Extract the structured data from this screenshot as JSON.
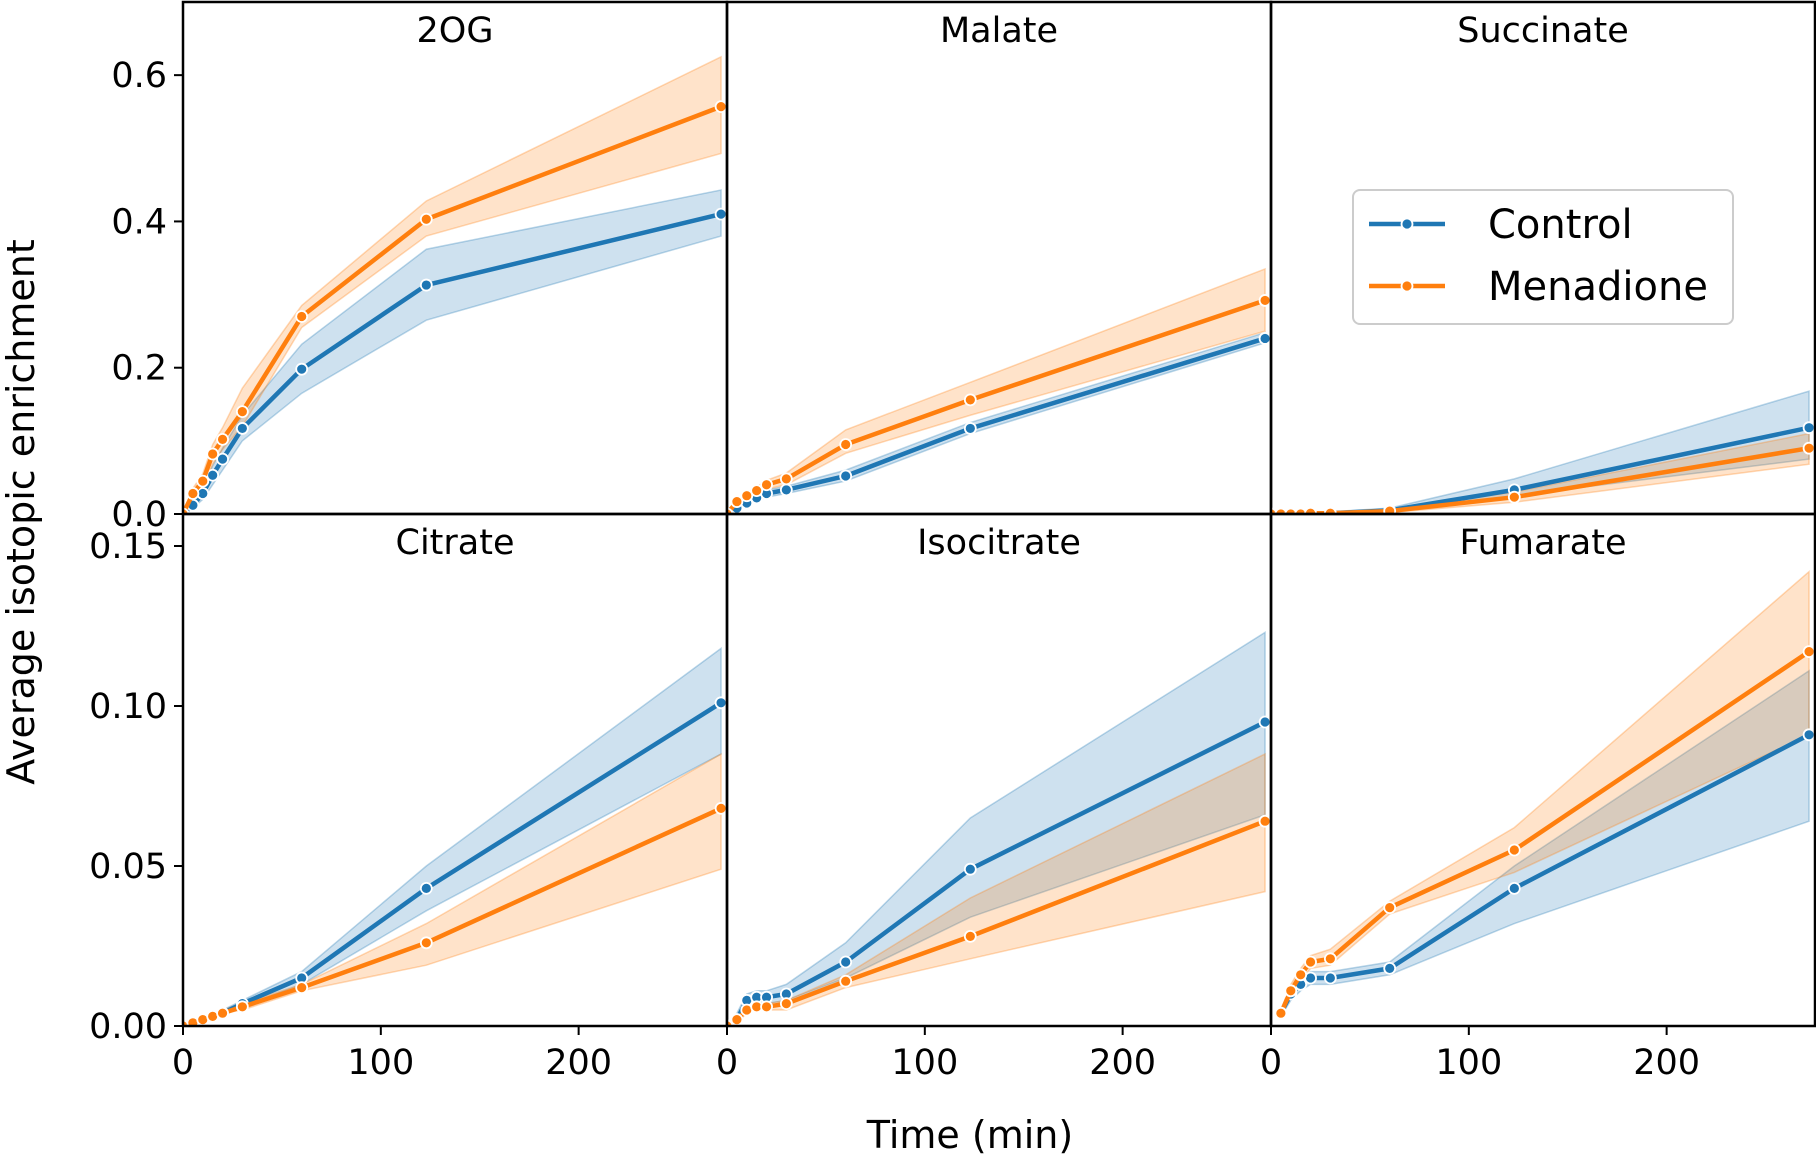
{
  "chart_data": {
    "type": "line",
    "xlabel": "Time (min)",
    "ylabel": "Average isotopic enrichment",
    "legend": {
      "placement": "top-right of Succinate panel",
      "entries": [
        {
          "name": "Control",
          "color": "#1f77b4"
        },
        {
          "name": "Menadione",
          "color": "#ff7f0e"
        }
      ]
    },
    "shared_x": {
      "ticks": [
        0,
        100,
        200
      ],
      "tick_labels": [
        "0",
        "100",
        "200"
      ],
      "range": [
        0,
        275
      ]
    },
    "rows": [
      {
        "ylim": [
          0,
          0.7
        ],
        "yticks": [
          0,
          0.2,
          0.4,
          0.6
        ],
        "ytick_labels": [
          "0.0",
          "0.2",
          "0.4",
          "0.6"
        ]
      },
      {
        "ylim": [
          0,
          0.16
        ],
        "yticks": [
          0,
          0.05,
          0.1,
          0.15
        ],
        "ytick_labels": [
          "0.00",
          "0.05",
          "0.10",
          "0.15"
        ]
      }
    ],
    "panels": [
      {
        "title": "2OG",
        "row": 0,
        "col": 0,
        "series": [
          {
            "name": "Control",
            "color": "#1f77b4",
            "x": [
              0,
              5,
              10,
              15,
              20,
              30,
              60,
              123,
              272
            ],
            "y": [
              0,
              0.012,
              0.028,
              0.053,
              0.075,
              0.117,
              0.198,
              0.313,
              0.41
            ],
            "lower": [
              0,
              0.008,
              0.02,
              0.04,
              0.06,
              0.1,
              0.165,
              0.265,
              0.38
            ],
            "upper": [
              0,
              0.016,
              0.036,
              0.066,
              0.09,
              0.135,
              0.232,
              0.362,
              0.443
            ]
          },
          {
            "name": "Menadione",
            "color": "#ff7f0e",
            "x": [
              0,
              5,
              10,
              15,
              20,
              30,
              60,
              123,
              272
            ],
            "y": [
              0,
              0.028,
              0.045,
              0.082,
              0.102,
              0.14,
              0.27,
              0.403,
              0.557
            ],
            "lower": [
              0,
              0.022,
              0.035,
              0.068,
              0.088,
              0.12,
              0.255,
              0.38,
              0.493
            ],
            "upper": [
              0,
              0.035,
              0.055,
              0.095,
              0.118,
              0.172,
              0.285,
              0.428,
              0.625
            ]
          }
        ]
      },
      {
        "title": "Malate",
        "row": 0,
        "col": 1,
        "series": [
          {
            "name": "Control",
            "color": "#1f77b4",
            "x": [
              0,
              5,
              10,
              15,
              20,
              30,
              60,
              123,
              272
            ],
            "y": [
              0,
              0.008,
              0.015,
              0.022,
              0.028,
              0.033,
              0.052,
              0.117,
              0.24
            ],
            "lower": [
              0,
              0.006,
              0.012,
              0.018,
              0.023,
              0.028,
              0.045,
              0.11,
              0.234
            ],
            "upper": [
              0,
              0.01,
              0.018,
              0.026,
              0.033,
              0.038,
              0.06,
              0.125,
              0.248
            ]
          },
          {
            "name": "Menadione",
            "color": "#ff7f0e",
            "x": [
              0,
              5,
              10,
              15,
              20,
              30,
              60,
              123,
              272
            ],
            "y": [
              0,
              0.017,
              0.025,
              0.032,
              0.04,
              0.048,
              0.095,
              0.156,
              0.292
            ],
            "lower": [
              0,
              0.014,
              0.021,
              0.027,
              0.034,
              0.04,
              0.083,
              0.135,
              0.25
            ],
            "upper": [
              0,
              0.02,
              0.029,
              0.037,
              0.046,
              0.056,
              0.115,
              0.18,
              0.335
            ]
          }
        ]
      },
      {
        "title": "Succinate",
        "row": 0,
        "col": 2,
        "series": [
          {
            "name": "Control",
            "color": "#1f77b4",
            "x": [
              0,
              5,
              10,
              15,
              20,
              30,
              60,
              123,
              272
            ],
            "y": [
              0,
              0,
              0,
              0,
              0.001,
              0.001,
              0.005,
              0.033,
              0.118
            ],
            "lower": [
              0,
              0,
              0,
              0,
              0,
              0,
              0.002,
              0.025,
              0.075
            ],
            "upper": [
              0,
              0,
              0,
              0.001,
              0.002,
              0.003,
              0.008,
              0.048,
              0.168
            ]
          },
          {
            "name": "Menadione",
            "color": "#ff7f0e",
            "x": [
              0,
              5,
              10,
              15,
              20,
              30,
              60,
              123,
              272
            ],
            "y": [
              0,
              0,
              0,
              0,
              0.001,
              0.001,
              0.004,
              0.023,
              0.09
            ],
            "lower": [
              0,
              0,
              0,
              0,
              0,
              0,
              0.002,
              0.016,
              0.068
            ],
            "upper": [
              0,
              0,
              0,
              0.001,
              0.002,
              0.002,
              0.006,
              0.03,
              0.11
            ]
          }
        ]
      },
      {
        "title": "Citrate",
        "row": 1,
        "col": 0,
        "series": [
          {
            "name": "Control",
            "color": "#1f77b4",
            "x": [
              0,
              5,
              10,
              15,
              20,
              30,
              60,
              123,
              272
            ],
            "y": [
              0,
              0.001,
              0.002,
              0.003,
              0.004,
              0.007,
              0.015,
              0.043,
              0.101
            ],
            "lower": [
              0,
              0.001,
              0.002,
              0.003,
              0.004,
              0.006,
              0.013,
              0.036,
              0.085
            ],
            "upper": [
              0,
              0.002,
              0.003,
              0.004,
              0.005,
              0.008,
              0.017,
              0.05,
              0.118
            ]
          },
          {
            "name": "Menadione",
            "color": "#ff7f0e",
            "x": [
              0,
              5,
              10,
              15,
              20,
              30,
              60,
              123,
              272
            ],
            "y": [
              0,
              0.001,
              0.002,
              0.003,
              0.004,
              0.006,
              0.012,
              0.026,
              0.068
            ],
            "lower": [
              0,
              0.001,
              0.002,
              0.003,
              0.004,
              0.005,
              0.011,
              0.019,
              0.049
            ],
            "upper": [
              0,
              0.002,
              0.003,
              0.004,
              0.005,
              0.007,
              0.013,
              0.032,
              0.085
            ]
          }
        ]
      },
      {
        "title": "Isocitrate",
        "row": 1,
        "col": 1,
        "series": [
          {
            "name": "Control",
            "color": "#1f77b4",
            "x": [
              0,
              5,
              10,
              15,
              20,
              30,
              60,
              123,
              272
            ],
            "y": [
              0,
              0.002,
              0.008,
              0.009,
              0.009,
              0.01,
              0.02,
              0.049,
              0.095
            ],
            "lower": [
              0,
              0.001,
              0.006,
              0.007,
              0.007,
              0.008,
              0.015,
              0.034,
              0.066
            ],
            "upper": [
              0,
              0.004,
              0.01,
              0.011,
              0.011,
              0.013,
              0.026,
              0.065,
              0.123
            ]
          },
          {
            "name": "Menadione",
            "color": "#ff7f0e",
            "x": [
              0,
              5,
              10,
              15,
              20,
              30,
              60,
              123,
              272
            ],
            "y": [
              0,
              0.002,
              0.005,
              0.006,
              0.006,
              0.007,
              0.014,
              0.028,
              0.064
            ],
            "lower": [
              0,
              0.001,
              0.004,
              0.005,
              0.005,
              0.005,
              0.012,
              0.021,
              0.042
            ],
            "upper": [
              0,
              0.003,
              0.006,
              0.007,
              0.007,
              0.008,
              0.016,
              0.04,
              0.085
            ]
          }
        ]
      },
      {
        "title": "Fumarate",
        "row": 1,
        "col": 2,
        "series": [
          {
            "name": "Control",
            "color": "#1f77b4",
            "x": [
              5,
              10,
              15,
              20,
              30,
              60,
              123,
              272
            ],
            "y": [
              0.004,
              0.01,
              0.013,
              0.015,
              0.015,
              0.018,
              0.043,
              0.091
            ],
            "lower": [
              0.003,
              0.008,
              0.011,
              0.013,
              0.013,
              0.016,
              0.032,
              0.064
            ],
            "upper": [
              0.005,
              0.012,
              0.015,
              0.017,
              0.017,
              0.02,
              0.05,
              0.111
            ]
          },
          {
            "name": "Menadione",
            "color": "#ff7f0e",
            "x": [
              5,
              10,
              15,
              20,
              30,
              60,
              123,
              272
            ],
            "y": [
              0.004,
              0.011,
              0.016,
              0.02,
              0.021,
              0.037,
              0.055,
              0.117
            ],
            "lower": [
              0.003,
              0.01,
              0.014,
              0.018,
              0.019,
              0.035,
              0.048,
              0.091
            ],
            "upper": [
              0.005,
              0.013,
              0.018,
              0.022,
              0.024,
              0.039,
              0.062,
              0.142
            ]
          }
        ]
      }
    ]
  }
}
